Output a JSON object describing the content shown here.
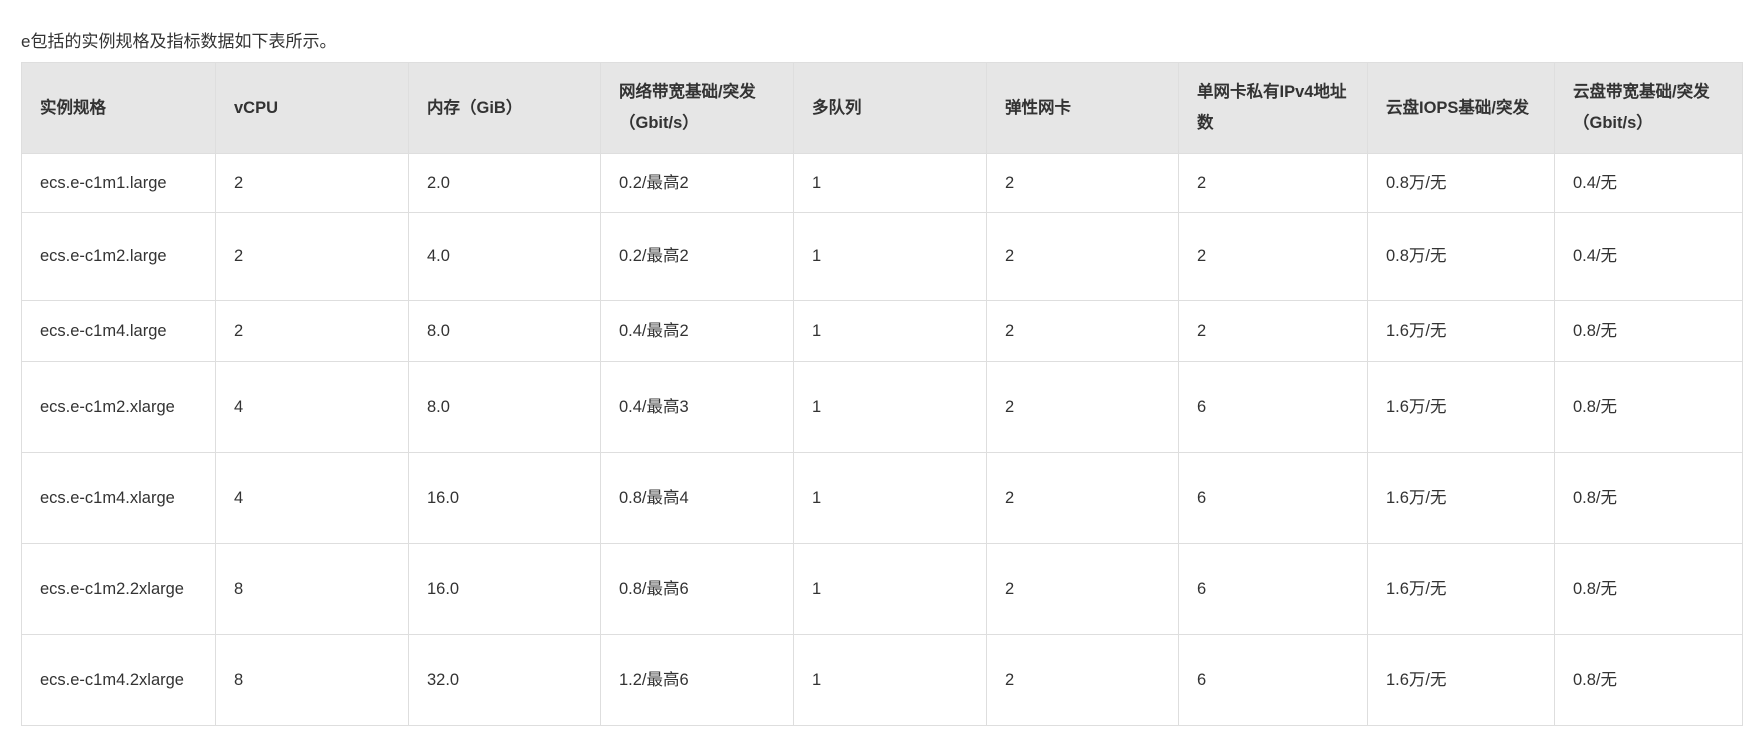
{
  "intro": "e包括的实例规格及指标数据如下表所示。",
  "table": {
    "headers": [
      "实例规格",
      "vCPU",
      "内存（GiB）",
      "网络带宽基础/突发（Gbit/s）",
      "多队列",
      "弹性网卡",
      "单网卡私有IPv4地址数",
      "云盘IOPS基础/突发",
      "云盘带宽基础/突发（Gbit/s）"
    ],
    "rows": [
      [
        "ecs.e-c1m1.large",
        "2",
        "2.0",
        "0.2/最高2",
        "1",
        "2",
        "2",
        "0.8万/无",
        "0.4/无"
      ],
      [
        "ecs.e-c1m2.large",
        "2",
        "4.0",
        "0.2/最高2",
        "1",
        "2",
        "2",
        "0.8万/无",
        "0.4/无"
      ],
      [
        "ecs.e-c1m4.large",
        "2",
        "8.0",
        "0.4/最高2",
        "1",
        "2",
        "2",
        "1.6万/无",
        "0.8/无"
      ],
      [
        "ecs.e-c1m2.xlarge",
        "4",
        "8.0",
        "0.4/最高3",
        "1",
        "2",
        "6",
        "1.6万/无",
        "0.8/无"
      ],
      [
        "ecs.e-c1m4.xlarge",
        "4",
        "16.0",
        "0.8/最高4",
        "1",
        "2",
        "6",
        "1.6万/无",
        "0.8/无"
      ],
      [
        "ecs.e-c1m2.2xlarge",
        "8",
        "16.0",
        "0.8/最高6",
        "1",
        "2",
        "6",
        "1.6万/无",
        "0.8/无"
      ],
      [
        "ecs.e-c1m4.2xlarge",
        "8",
        "32.0",
        "1.2/最高6",
        "1",
        "2",
        "6",
        "1.6万/无",
        "0.8/无"
      ]
    ]
  }
}
